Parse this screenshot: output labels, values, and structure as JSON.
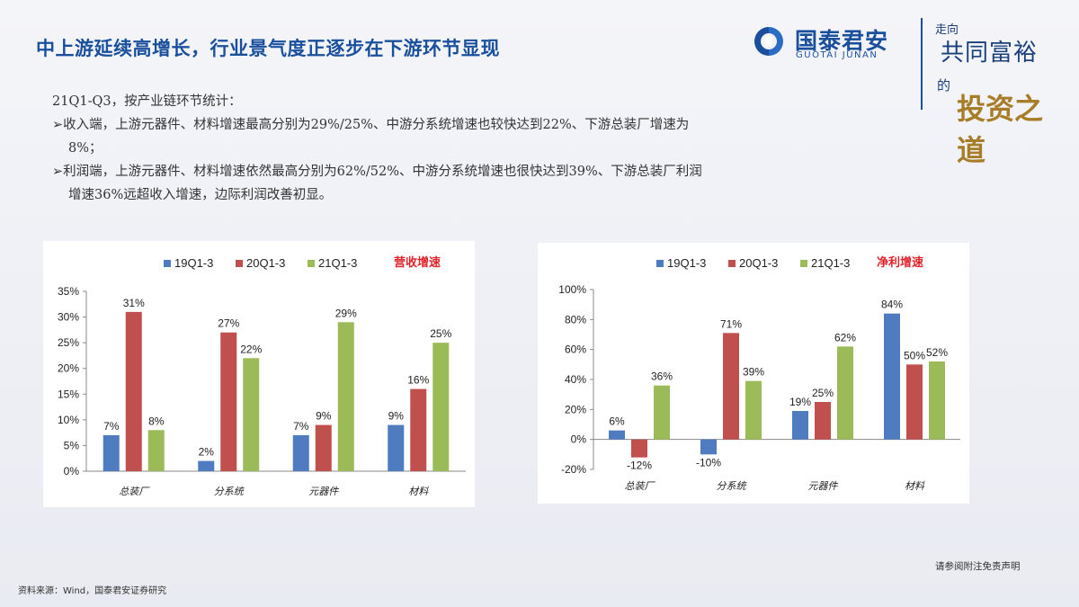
{
  "header": {
    "title": "中上游延续高增长，行业景气度正逐步在下游环节显现",
    "logo_cn": "国泰君安",
    "logo_en": "GUOTAI JUNAN",
    "slogan_line1": "走向",
    "slogan_line2": "共同富裕",
    "slogan_line3": "的",
    "slogan_line4": "投资之道"
  },
  "body": {
    "intro": "21Q1-Q3，按产业链环节统计：",
    "bullet1_line1": "➢收入端，上游元器件、材料增速最高分别为29%/25%、中游分系统增速也较快达到22%、下游总装厂增速为",
    "bullet1_line2": "8%；",
    "bullet2_line1": "➢利润端，上游元器件、材料增速依然最高分别为62%/52%、中游分系统增速也很快达到39%、下游总装厂利润",
    "bullet2_line2": "增速36%远超收入增速，边际利润改善初显。"
  },
  "colors": {
    "s1": "#4f7bc1",
    "s2": "#c0504d",
    "s3": "#9bbb59",
    "tag": "#e0242c",
    "brand": "#1a4f9c"
  },
  "chart_data": [
    {
      "type": "bar",
      "title": "营收增速",
      "categories": [
        "总装厂",
        "分系统",
        "元器件",
        "材料"
      ],
      "series": [
        {
          "name": "19Q1-3",
          "values": [
            7,
            2,
            7,
            9
          ],
          "labels": [
            "7%",
            "2%",
            "7%",
            "9%"
          ]
        },
        {
          "name": "20Q1-3",
          "values": [
            31,
            27,
            9,
            16
          ],
          "labels": [
            "31%",
            "27%",
            "9%",
            "16%"
          ]
        },
        {
          "name": "21Q1-3",
          "values": [
            8,
            22,
            29,
            25
          ],
          "labels": [
            "8%",
            "22%",
            "29%",
            "25%"
          ]
        }
      ],
      "ylim": [
        0,
        35
      ],
      "yticks": [
        "0%",
        "5%",
        "10%",
        "15%",
        "20%",
        "25%",
        "30%",
        "35%"
      ],
      "grid": false,
      "legend": "top"
    },
    {
      "type": "bar",
      "title": "净利增速",
      "categories": [
        "总装厂",
        "分系统",
        "元器件",
        "材料"
      ],
      "series": [
        {
          "name": "19Q1-3",
          "values": [
            6,
            -10,
            19,
            84
          ],
          "labels": [
            "6%",
            "-10%",
            "19%",
            "84%"
          ]
        },
        {
          "name": "20Q1-3",
          "values": [
            -12,
            71,
            25,
            50
          ],
          "labels": [
            "-12%",
            "71%",
            "25%",
            "50%"
          ]
        },
        {
          "name": "21Q1-3",
          "values": [
            36,
            39,
            62,
            52
          ],
          "labels": [
            "36%",
            "39%",
            "62%",
            "52%"
          ]
        }
      ],
      "ylim": [
        -20,
        100
      ],
      "yticks": [
        "-20%",
        "0%",
        "20%",
        "40%",
        "60%",
        "80%",
        "100%"
      ],
      "grid": false,
      "legend": "top"
    }
  ],
  "footer": {
    "source": "资料来源：Wind，国泰君安证券研究",
    "disclaimer": "请参阅附注免责声明"
  }
}
